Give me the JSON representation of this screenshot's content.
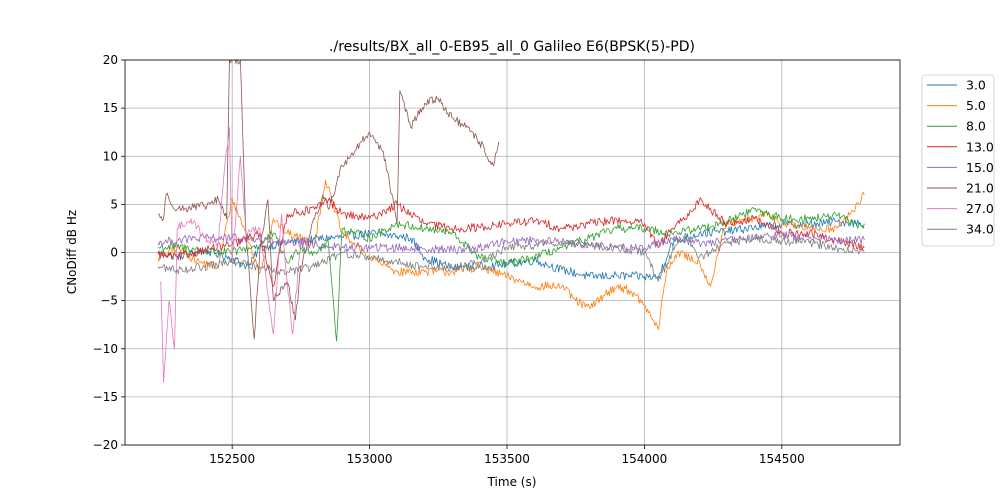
{
  "chart_data": {
    "type": "line",
    "title": "./results/BX_all_0-EB95_all_0 Galileo E6(BPSK(5)-PD)",
    "xlabel": "Time (s)",
    "ylabel": "CNoDiff dB Hz",
    "xlim": [
      152110,
      154930
    ],
    "ylim": [
      -20,
      20
    ],
    "xticks": [
      152500,
      153000,
      153500,
      154000,
      154500
    ],
    "xtick_labels": [
      "152500",
      "153000",
      "153500",
      "154000",
      "154500"
    ],
    "yticks": [
      -20,
      -15,
      -10,
      -5,
      0,
      5,
      10,
      15,
      20
    ],
    "ytick_labels": [
      "−20",
      "−15",
      "−10",
      "−5",
      "0",
      "5",
      "10",
      "15",
      "20"
    ],
    "grid": true,
    "legend_position": "outside-right-top",
    "series": [
      {
        "name": "3.0",
        "color": "#1f77b4",
        "points": [
          [
            152230,
            0.0
          ],
          [
            152300,
            -0.4
          ],
          [
            152400,
            0.2
          ],
          [
            152500,
            -0.6
          ],
          [
            152560,
            -1.5
          ],
          [
            152600,
            0.5
          ],
          [
            152700,
            1.0
          ],
          [
            152800,
            1.4
          ],
          [
            152900,
            1.6
          ],
          [
            153000,
            2.0
          ],
          [
            153100,
            1.7
          ],
          [
            153150,
            1.5
          ],
          [
            153200,
            -0.5
          ],
          [
            153300,
            -1.6
          ],
          [
            153400,
            -1.5
          ],
          [
            153500,
            -1.2
          ],
          [
            153600,
            -0.8
          ],
          [
            153700,
            -1.8
          ],
          [
            153800,
            -2.5
          ],
          [
            153900,
            -2.4
          ],
          [
            154000,
            -2.5
          ],
          [
            154050,
            -2.6
          ],
          [
            154100,
            1.0
          ],
          [
            154200,
            2.0
          ],
          [
            154300,
            2.2
          ],
          [
            154400,
            2.6
          ],
          [
            154500,
            2.9
          ],
          [
            154600,
            2.9
          ],
          [
            154700,
            3.2
          ],
          [
            154800,
            3.0
          ]
        ]
      },
      {
        "name": "5.0",
        "color": "#ff7f0e",
        "points": [
          [
            152230,
            -0.6
          ],
          [
            152300,
            0.5
          ],
          [
            152380,
            -1.0
          ],
          [
            152450,
            -1.5
          ],
          [
            152480,
            3.0
          ],
          [
            152500,
            5.6
          ],
          [
            152550,
            2.0
          ],
          [
            152600,
            -2.2
          ],
          [
            152650,
            3.5
          ],
          [
            152700,
            2.0
          ],
          [
            152800,
            1.0
          ],
          [
            152840,
            7.5
          ],
          [
            152900,
            2.0
          ],
          [
            153000,
            -0.5
          ],
          [
            153100,
            -2.0
          ],
          [
            153200,
            -2.0
          ],
          [
            153300,
            -2.0
          ],
          [
            153400,
            -1.5
          ],
          [
            153500,
            -2.5
          ],
          [
            153600,
            -3.5
          ],
          [
            153700,
            -3.5
          ],
          [
            153750,
            -5.0
          ],
          [
            153800,
            -5.8
          ],
          [
            153850,
            -4.5
          ],
          [
            153900,
            -3.5
          ],
          [
            153950,
            -4.0
          ],
          [
            154000,
            -5.5
          ],
          [
            154050,
            -8.0
          ],
          [
            154080,
            -2.0
          ],
          [
            154120,
            0.0
          ],
          [
            154200,
            -1.0
          ],
          [
            154240,
            -3.5
          ],
          [
            154280,
            1.5
          ],
          [
            154300,
            3.0
          ],
          [
            154400,
            3.5
          ],
          [
            154450,
            4.0
          ],
          [
            154500,
            3.0
          ],
          [
            154600,
            2.5
          ],
          [
            154700,
            2.5
          ],
          [
            154750,
            4.0
          ],
          [
            154800,
            6.0
          ]
        ]
      },
      {
        "name": "8.0",
        "color": "#2ca02c",
        "points": [
          [
            152230,
            0.5
          ],
          [
            152300,
            0.6
          ],
          [
            152400,
            0.2
          ],
          [
            152500,
            0.0
          ],
          [
            152600,
            0.8
          ],
          [
            152650,
            2.0
          ],
          [
            152700,
            -1.0
          ],
          [
            152750,
            0.5
          ],
          [
            152800,
            0.0
          ],
          [
            152850,
            1.0
          ],
          [
            152880,
            -9.2
          ],
          [
            152900,
            2.5
          ],
          [
            153000,
            1.5
          ],
          [
            153100,
            3.0
          ],
          [
            153200,
            2.5
          ],
          [
            153300,
            2.0
          ],
          [
            153400,
            -0.5
          ],
          [
            153500,
            -1.2
          ],
          [
            153600,
            -0.5
          ],
          [
            153700,
            0.5
          ],
          [
            153800,
            1.5
          ],
          [
            153900,
            2.5
          ],
          [
            154000,
            2.5
          ],
          [
            154100,
            2.0
          ],
          [
            154200,
            2.5
          ],
          [
            154300,
            3.2
          ],
          [
            154400,
            4.5
          ],
          [
            154500,
            3.5
          ],
          [
            154600,
            3.5
          ],
          [
            154700,
            3.8
          ],
          [
            154800,
            2.6
          ]
        ]
      },
      {
        "name": "13.0",
        "color": "#d62728",
        "points": [
          [
            152230,
            -0.2
          ],
          [
            152300,
            -0.5
          ],
          [
            152400,
            0.3
          ],
          [
            152500,
            0.8
          ],
          [
            152600,
            2.0
          ],
          [
            152650,
            -3.5
          ],
          [
            152700,
            4.0
          ],
          [
            152800,
            4.5
          ],
          [
            152850,
            5.5
          ],
          [
            152900,
            4.0
          ],
          [
            153000,
            3.5
          ],
          [
            153100,
            5.0
          ],
          [
            153200,
            3.0
          ],
          [
            153300,
            2.5
          ],
          [
            153400,
            2.6
          ],
          [
            153500,
            3.0
          ],
          [
            153600,
            3.3
          ],
          [
            153700,
            2.5
          ],
          [
            153800,
            3.0
          ],
          [
            153900,
            3.4
          ],
          [
            154000,
            3.0
          ],
          [
            154050,
            0.5
          ],
          [
            154100,
            2.5
          ],
          [
            154150,
            3.5
          ],
          [
            154200,
            5.5
          ],
          [
            154300,
            3.0
          ],
          [
            154400,
            3.5
          ],
          [
            154500,
            2.0
          ],
          [
            154600,
            2.0
          ],
          [
            154700,
            1.2
          ],
          [
            154800,
            0.5
          ]
        ]
      },
      {
        "name": "15.0",
        "color": "#9467bd",
        "points": [
          [
            152230,
            1.0
          ],
          [
            152300,
            1.3
          ],
          [
            152400,
            1.5
          ],
          [
            152500,
            1.5
          ],
          [
            152600,
            1.3
          ],
          [
            152700,
            1.0
          ],
          [
            152800,
            0.8
          ],
          [
            152900,
            0.5
          ],
          [
            153000,
            0.5
          ],
          [
            153100,
            0.5
          ],
          [
            153200,
            0.4
          ],
          [
            153300,
            0.3
          ],
          [
            153400,
            0.5
          ],
          [
            153500,
            1.2
          ],
          [
            153600,
            1.3
          ],
          [
            153700,
            1.1
          ],
          [
            153800,
            0.8
          ],
          [
            153900,
            0.5
          ],
          [
            154000,
            0.5
          ],
          [
            154100,
            1.5
          ],
          [
            154200,
            1.0
          ],
          [
            154300,
            1.2
          ],
          [
            154400,
            1.5
          ],
          [
            154500,
            1.8
          ],
          [
            154600,
            1.5
          ],
          [
            154700,
            1.2
          ],
          [
            154800,
            1.3
          ]
        ]
      },
      {
        "name": "21.0",
        "color": "#8c564b",
        "points": [
          [
            152230,
            4.0
          ],
          [
            152250,
            3.5
          ],
          [
            152260,
            6.0
          ],
          [
            152300,
            4.5
          ],
          [
            152400,
            4.8
          ],
          [
            152450,
            5.5
          ],
          [
            152480,
            3.5
          ],
          [
            152490,
            20.0
          ],
          [
            152530,
            20.0
          ],
          [
            152550,
            2.0
          ],
          [
            152580,
            -9.0
          ],
          [
            152600,
            0.0
          ],
          [
            152630,
            5.5
          ],
          [
            152650,
            -5.0
          ],
          [
            152700,
            -3.0
          ],
          [
            152730,
            -7.0
          ],
          [
            152750,
            -1.5
          ],
          [
            152800,
            3.5
          ],
          [
            152830,
            6.0
          ],
          [
            152850,
            4.5
          ],
          [
            152900,
            9.0
          ],
          [
            153000,
            12.5
          ],
          [
            153050,
            10.5
          ],
          [
            153100,
            3.0
          ],
          [
            153110,
            16.8
          ],
          [
            153150,
            13.0
          ],
          [
            153200,
            15.5
          ],
          [
            153250,
            16.0
          ],
          [
            153300,
            14.0
          ],
          [
            153350,
            13.0
          ],
          [
            153400,
            11.5
          ],
          [
            153450,
            9.0
          ],
          [
            153470,
            11.5
          ]
        ]
      },
      {
        "name": "27.0",
        "color": "#e377c2",
        "points": [
          [
            152240,
            -3.0
          ],
          [
            152250,
            -13.5
          ],
          [
            152270,
            -5.0
          ],
          [
            152290,
            -10.0
          ],
          [
            152300,
            2.5
          ],
          [
            152350,
            3.5
          ],
          [
            152400,
            1.5
          ],
          [
            152450,
            1.0
          ],
          [
            152470,
            8.0
          ],
          [
            152490,
            13.0
          ],
          [
            152500,
            -1.0
          ],
          [
            152530,
            10.0
          ],
          [
            152550,
            2.0
          ],
          [
            152600,
            2.5
          ],
          [
            152650,
            -8.5
          ],
          [
            152680,
            4.0
          ],
          [
            152700,
            -3.0
          ],
          [
            152720,
            -8.5
          ],
          [
            152750,
            1.5
          ],
          [
            152780,
            0.5
          ]
        ]
      },
      {
        "name": "34.0",
        "color": "#7f7f7f",
        "points": [
          [
            152230,
            -1.5
          ],
          [
            152300,
            -1.8
          ],
          [
            152400,
            -1.5
          ],
          [
            152500,
            -1.0
          ],
          [
            152600,
            -1.5
          ],
          [
            152700,
            -2.0
          ],
          [
            152800,
            -1.5
          ],
          [
            152900,
            0.0
          ],
          [
            153000,
            -0.5
          ],
          [
            153100,
            -1.0
          ],
          [
            153200,
            -1.5
          ],
          [
            153300,
            -1.5
          ],
          [
            153400,
            -1.0
          ],
          [
            153500,
            0.5
          ],
          [
            153600,
            0.8
          ],
          [
            153700,
            1.0
          ],
          [
            153800,
            0.8
          ],
          [
            153900,
            0.5
          ],
          [
            154000,
            0.0
          ],
          [
            154050,
            -3.0
          ],
          [
            154100,
            0.0
          ],
          [
            154150,
            2.0
          ],
          [
            154200,
            -0.5
          ],
          [
            154300,
            1.0
          ],
          [
            154400,
            1.5
          ],
          [
            154500,
            1.2
          ],
          [
            154600,
            1.0
          ],
          [
            154700,
            0.5
          ],
          [
            154800,
            0.0
          ]
        ]
      }
    ]
  }
}
